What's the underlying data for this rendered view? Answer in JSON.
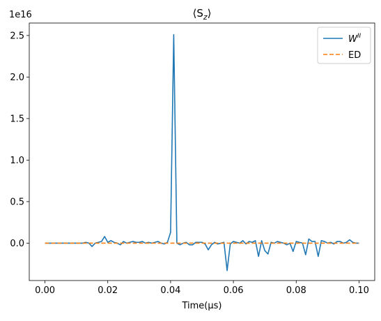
{
  "chart_data": {
    "type": "line",
    "title": "⟨S",
    "title_sub": "z",
    "title_close": "⟩",
    "xlabel": "Time(μs)",
    "ylabel": "",
    "offset_text": "1e16",
    "xlim": [
      -0.005,
      0.105
    ],
    "ylim": [
      -0.45,
      2.65
    ],
    "x_ticks": [
      0.0,
      0.02,
      0.04,
      0.06,
      0.08,
      0.1
    ],
    "x_tick_labels": [
      "0.00",
      "0.02",
      "0.04",
      "0.06",
      "0.08",
      "0.10"
    ],
    "y_ticks": [
      0.0,
      0.5,
      1.0,
      1.5,
      2.0,
      2.5
    ],
    "y_tick_labels": [
      "0.0",
      "0.5",
      "1.0",
      "1.5",
      "2.0",
      "2.5"
    ],
    "legend_position": "upper right",
    "grid": false,
    "series": [
      {
        "name": "W",
        "name_sup": "II",
        "color": "#1f77b4",
        "dash": "solid",
        "x": [
          0.0,
          0.001,
          0.002,
          0.003,
          0.004,
          0.005,
          0.006,
          0.007,
          0.008,
          0.009,
          0.01,
          0.011,
          0.012,
          0.013,
          0.014,
          0.015,
          0.016,
          0.017,
          0.018,
          0.019,
          0.02,
          0.021,
          0.022,
          0.023,
          0.024,
          0.025,
          0.026,
          0.027,
          0.028,
          0.029,
          0.03,
          0.031,
          0.032,
          0.033,
          0.034,
          0.035,
          0.036,
          0.037,
          0.038,
          0.039,
          0.04,
          0.041,
          0.042,
          0.043,
          0.044,
          0.045,
          0.046,
          0.047,
          0.048,
          0.049,
          0.05,
          0.051,
          0.052,
          0.053,
          0.054,
          0.055,
          0.056,
          0.057,
          0.058,
          0.059,
          0.06,
          0.061,
          0.062,
          0.063,
          0.064,
          0.065,
          0.066,
          0.067,
          0.068,
          0.069,
          0.07,
          0.071,
          0.072,
          0.073,
          0.074,
          0.075,
          0.076,
          0.077,
          0.078,
          0.079,
          0.08,
          0.081,
          0.082,
          0.083,
          0.084,
          0.085,
          0.086,
          0.087,
          0.088,
          0.089,
          0.09,
          0.091,
          0.092,
          0.093,
          0.094,
          0.095,
          0.096,
          0.097,
          0.098,
          0.099,
          0.1
        ],
        "y": [
          0,
          0,
          0,
          0,
          0,
          0,
          0,
          0,
          0,
          0,
          0,
          0,
          0,
          0.01,
          0,
          -0.04,
          0,
          0.01,
          0.02,
          0.08,
          0.01,
          0.03,
          0.01,
          0,
          -0.02,
          0.02,
          0,
          0.01,
          0.02,
          0.01,
          0.01,
          0.02,
          0,
          0.01,
          0,
          0.01,
          0.02,
          0,
          -0.01,
          0.01,
          0.13,
          2.51,
          0,
          -0.02,
          0,
          0.01,
          -0.02,
          -0.02,
          0.01,
          0.01,
          0.01,
          -0.01,
          -0.08,
          -0.02,
          0.01,
          -0.01,
          0,
          0.01,
          -0.33,
          -0.01,
          0.02,
          0.01,
          0,
          0.03,
          -0.01,
          0.02,
          0.01,
          0.03,
          -0.16,
          0.03,
          -0.09,
          -0.13,
          0.01,
          0,
          0.02,
          0.01,
          0,
          -0.02,
          0,
          -0.1,
          0.02,
          0.01,
          0,
          -0.14,
          0.05,
          0.02,
          0.02,
          -0.16,
          0.03,
          0.02,
          0,
          0.01,
          -0.01,
          0.02,
          0.02,
          0,
          0.01,
          0.04,
          0.01,
          0,
          0
        ]
      },
      {
        "name": "ED",
        "name_sup": "",
        "color": "#ff7f0e",
        "dash": "dashed",
        "x": [
          0.0,
          0.1
        ],
        "y": [
          0,
          0
        ]
      }
    ]
  }
}
